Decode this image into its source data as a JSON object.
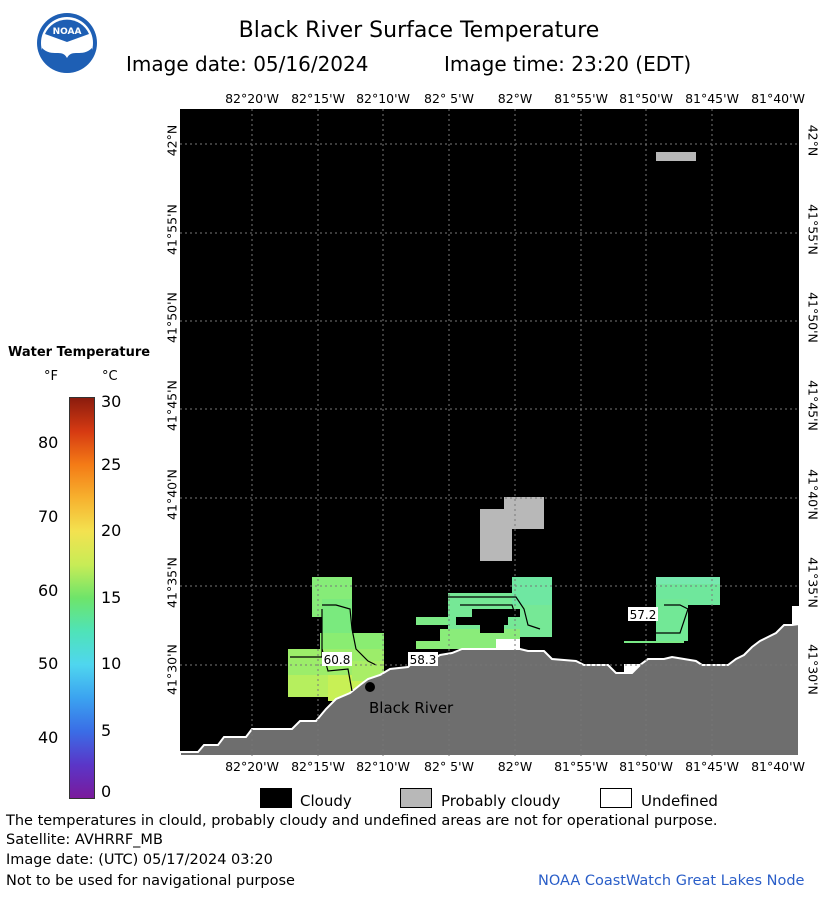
{
  "header": {
    "logo_text": "NOAA",
    "title": "Black River Surface Temperature",
    "image_date": "Image date: 05/16/2024",
    "image_time": "Image time: 23:20 (EDT)"
  },
  "map": {
    "lon_labels": [
      "82°20'W",
      "82°15'W",
      "82°10'W",
      "82° 5'W",
      "82°W",
      "81°55'W",
      "81°50'W",
      "81°45'W",
      "81°40'W"
    ],
    "lat_labels": [
      "42°N",
      "41°55'N",
      "41°50'N",
      "41°45'N",
      "41°40'N",
      "41°35'N",
      "41°30'N"
    ],
    "contour_labels": [
      "60.8",
      "58.3",
      "57.2"
    ],
    "location_label": "Black River"
  },
  "legend": {
    "title": "Water Temperature",
    "unit_f": "°F",
    "unit_c": "°C",
    "f_ticks": [
      "80",
      "70",
      "60",
      "50",
      "40"
    ],
    "c_ticks": [
      "30",
      "25",
      "20",
      "15",
      "10",
      "5",
      "0"
    ],
    "gradient_colors": [
      "#8b1c0e",
      "#d63a12",
      "#f47b16",
      "#f7b12e",
      "#f3e250",
      "#c8ec56",
      "#6ee46a",
      "#4fe3b8",
      "#4fd6ef",
      "#3ba3f0",
      "#3a6de6",
      "#5a36c8",
      "#7a1a9c"
    ]
  },
  "key": {
    "items": [
      {
        "label": "Cloudy",
        "color": "#000000"
      },
      {
        "label": "Probably cloudy",
        "color": "#b8b8b8"
      },
      {
        "label": "Undefined",
        "color": "#ffffff"
      }
    ]
  },
  "footer": {
    "disclaimer": "The temperatures in clould, probably cloudy and undefined areas are not for operational purpose.",
    "satellite": "Satellite: AVHRRF_MB",
    "utc_date": "Image date: (UTC) 05/17/2024  03:20",
    "nav_warning": "Not to be used for navigational purpose",
    "credit": "NOAA CoastWatch Great Lakes Node"
  }
}
